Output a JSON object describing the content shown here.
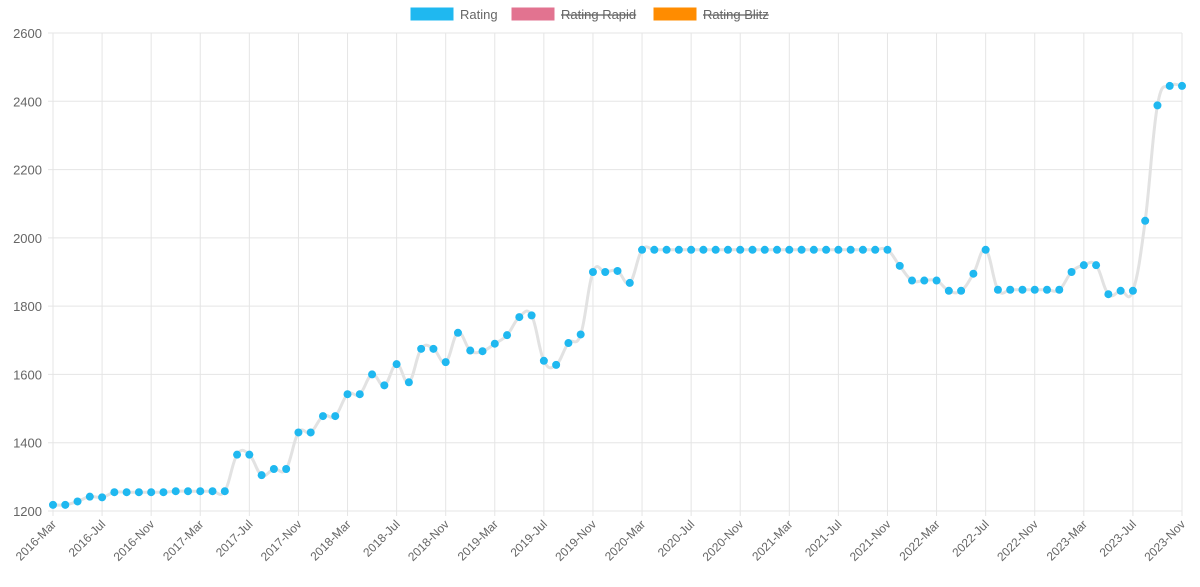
{
  "chart_data": {
    "type": "line",
    "title": "",
    "xlabel": "",
    "ylabel": "",
    "ylim": [
      1200,
      2600
    ],
    "yticks": [
      1200,
      1400,
      1600,
      1800,
      2000,
      2200,
      2400,
      2600
    ],
    "grid": true,
    "legend_placement": "top-center",
    "legend": [
      {
        "label": "Rating",
        "color": "#1fb8f0",
        "hidden": false
      },
      {
        "label": "Rating Rapid",
        "color": "#e27390",
        "hidden": true
      },
      {
        "label": "Rating Blitz",
        "color": "#ff8c00",
        "hidden": true
      }
    ],
    "line_color": "#e2e2e2",
    "point_color": "#1fb8f0",
    "x": [
      "2016-Mar",
      "2016-Apr",
      "2016-May",
      "2016-Jun",
      "2016-Jul",
      "2016-Aug",
      "2016-Sep",
      "2016-Oct",
      "2016-Nov",
      "2016-Dec",
      "2017-Jan",
      "2017-Feb",
      "2017-Mar",
      "2017-Apr",
      "2017-May",
      "2017-Jun",
      "2017-Jul",
      "2017-Aug",
      "2017-Sep",
      "2017-Oct",
      "2017-Nov",
      "2017-Dec",
      "2018-Jan",
      "2018-Feb",
      "2018-Mar",
      "2018-Apr",
      "2018-May",
      "2018-Jun",
      "2018-Jul",
      "2018-Aug",
      "2018-Sep",
      "2018-Oct",
      "2018-Nov",
      "2018-Dec",
      "2019-Jan",
      "2019-Feb",
      "2019-Mar",
      "2019-Apr",
      "2019-May",
      "2019-Jun",
      "2019-Jul",
      "2019-Aug",
      "2019-Sep",
      "2019-Oct",
      "2019-Nov",
      "2019-Dec",
      "2020-Jan",
      "2020-Feb",
      "2020-Mar",
      "2020-Apr",
      "2020-May",
      "2020-Jun",
      "2020-Jul",
      "2020-Aug",
      "2020-Sep",
      "2020-Oct",
      "2020-Nov",
      "2020-Dec",
      "2021-Jan",
      "2021-Feb",
      "2021-Mar",
      "2021-Apr",
      "2021-May",
      "2021-Jun",
      "2021-Jul",
      "2021-Aug",
      "2021-Sep",
      "2021-Oct",
      "2021-Nov",
      "2021-Dec",
      "2022-Jan",
      "2022-Feb",
      "2022-Mar",
      "2022-Apr",
      "2022-May",
      "2022-Jun",
      "2022-Jul",
      "2022-Aug",
      "2022-Sep",
      "2022-Oct",
      "2022-Nov",
      "2022-Dec",
      "2023-Jan",
      "2023-Feb",
      "2023-Mar",
      "2023-Apr",
      "2023-May",
      "2023-Jun",
      "2023-Jul",
      "2023-Aug",
      "2023-Sep",
      "2023-Oct",
      "2023-Nov"
    ],
    "series": [
      {
        "name": "Rating",
        "values": [
          1218,
          1218,
          1228,
          1242,
          1240,
          1255,
          1255,
          1255,
          1255,
          1255,
          1258,
          1258,
          1258,
          1258,
          1258,
          1365,
          1365,
          1305,
          1323,
          1323,
          1430,
          1430,
          1478,
          1478,
          1542,
          1542,
          1600,
          1568,
          1630,
          1577,
          1675,
          1675,
          1636,
          1722,
          1670,
          1668,
          1690,
          1715,
          1768,
          1773,
          1640,
          1628,
          1692,
          1717,
          1900,
          1900,
          1903,
          1868,
          1965,
          1965,
          1965,
          1965,
          1965,
          1965,
          1965,
          1965,
          1965,
          1965,
          1965,
          1965,
          1965,
          1965,
          1965,
          1965,
          1965,
          1965,
          1965,
          1965,
          1965,
          1918,
          1875,
          1875,
          1875,
          1845,
          1845,
          1895,
          1965,
          1848,
          1848,
          1848,
          1848,
          1848,
          1848,
          1900,
          1920,
          1920,
          1835,
          1845,
          1845,
          2050,
          2388,
          2445,
          2445
        ]
      }
    ],
    "xtick_every": 4
  }
}
